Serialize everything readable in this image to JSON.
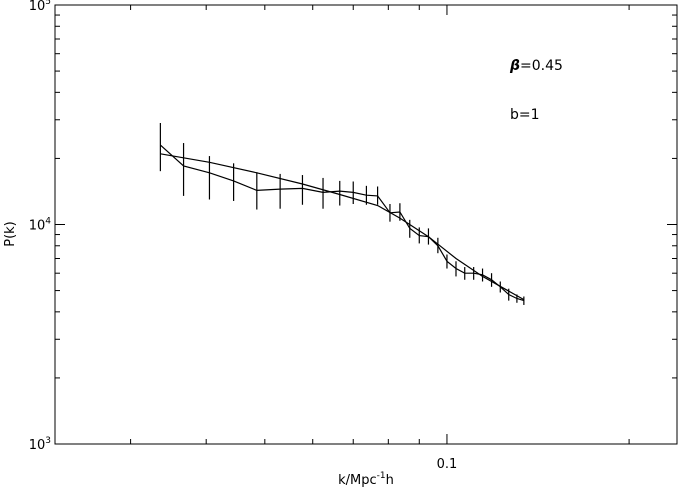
{
  "chart_data": {
    "type": "line",
    "title": "",
    "xlabel_base": "k/Mpc",
    "xlabel_sup": "-1",
    "xlabel_tail": "h",
    "ylabel": "P(k)",
    "x_scale": "log",
    "y_scale": "log",
    "xlim": [
      0.0225,
      0.24
    ],
    "ylim": [
      1000,
      100000
    ],
    "x_tick_labels": [
      {
        "value": 0.1,
        "label": "0.1"
      }
    ],
    "y_tick_labels": [
      {
        "value": 1000,
        "base": "10",
        "exp": "3"
      },
      {
        "value": 10000,
        "base": "10",
        "exp": "4"
      },
      {
        "value": 100000,
        "base": "10",
        "exp": "5"
      }
    ],
    "annotations": [
      {
        "symbol": "β",
        "text": "=0.45"
      },
      {
        "symbol": "",
        "text": "b=1"
      }
    ],
    "series": [
      {
        "style": "data-with-errorbars",
        "points": [
          {
            "x": 0.0336,
            "y": 23000,
            "lo": 17500,
            "hi": 29000
          },
          {
            "x": 0.0367,
            "y": 18500,
            "lo": 13500,
            "hi": 23500
          },
          {
            "x": 0.0405,
            "y": 17200,
            "lo": 13000,
            "hi": 20500
          },
          {
            "x": 0.0444,
            "y": 15800,
            "lo": 12800,
            "hi": 19000
          },
          {
            "x": 0.0485,
            "y": 14300,
            "lo": 11700,
            "hi": 17300
          },
          {
            "x": 0.053,
            "y": 14500,
            "lo": 11800,
            "hi": 17000
          },
          {
            "x": 0.0577,
            "y": 14600,
            "lo": 12300,
            "hi": 16800
          },
          {
            "x": 0.0624,
            "y": 14000,
            "lo": 11800,
            "hi": 16300
          },
          {
            "x": 0.0665,
            "y": 14200,
            "lo": 12200,
            "hi": 15800
          },
          {
            "x": 0.07,
            "y": 14000,
            "lo": 12400,
            "hi": 15700
          },
          {
            "x": 0.0736,
            "y": 13600,
            "lo": 12300,
            "hi": 15000
          },
          {
            "x": 0.0768,
            "y": 13500,
            "lo": 12300,
            "hi": 14900
          },
          {
            "x": 0.0805,
            "y": 11300,
            "lo": 10300,
            "hi": 12400
          },
          {
            "x": 0.0836,
            "y": 11400,
            "lo": 10400,
            "hi": 12500
          },
          {
            "x": 0.0868,
            "y": 9600,
            "lo": 8700,
            "hi": 10500
          },
          {
            "x": 0.09,
            "y": 8900,
            "lo": 8200,
            "hi": 9700
          },
          {
            "x": 0.0932,
            "y": 8800,
            "lo": 8100,
            "hi": 9600
          },
          {
            "x": 0.0966,
            "y": 8000,
            "lo": 7400,
            "hi": 8700
          },
          {
            "x": 0.1,
            "y": 6800,
            "lo": 6300,
            "hi": 7300
          },
          {
            "x": 0.1035,
            "y": 6300,
            "lo": 5800,
            "hi": 6800
          },
          {
            "x": 0.107,
            "y": 6000,
            "lo": 5600,
            "hi": 6400
          },
          {
            "x": 0.1107,
            "y": 6000,
            "lo": 5600,
            "hi": 6400
          },
          {
            "x": 0.1145,
            "y": 5900,
            "lo": 5500,
            "hi": 6300
          },
          {
            "x": 0.1185,
            "y": 5600,
            "lo": 5200,
            "hi": 6000
          },
          {
            "x": 0.1225,
            "y": 5200,
            "lo": 4900,
            "hi": 5500
          },
          {
            "x": 0.1265,
            "y": 4800,
            "lo": 4500,
            "hi": 5100
          },
          {
            "x": 0.1305,
            "y": 4600,
            "lo": 4400,
            "hi": 4800
          },
          {
            "x": 0.134,
            "y": 4500,
            "lo": 4300,
            "hi": 4700
          }
        ]
      },
      {
        "style": "model-line",
        "points": [
          {
            "x": 0.0336,
            "y": 21000
          },
          {
            "x": 0.0405,
            "y": 19200
          },
          {
            "x": 0.0485,
            "y": 17200
          },
          {
            "x": 0.0577,
            "y": 15300
          },
          {
            "x": 0.0665,
            "y": 13700
          },
          {
            "x": 0.0768,
            "y": 12200
          },
          {
            "x": 0.0836,
            "y": 10700
          },
          {
            "x": 0.0932,
            "y": 8800
          },
          {
            "x": 0.1035,
            "y": 7000
          },
          {
            "x": 0.1145,
            "y": 5800
          },
          {
            "x": 0.134,
            "y": 4550
          }
        ]
      }
    ]
  }
}
